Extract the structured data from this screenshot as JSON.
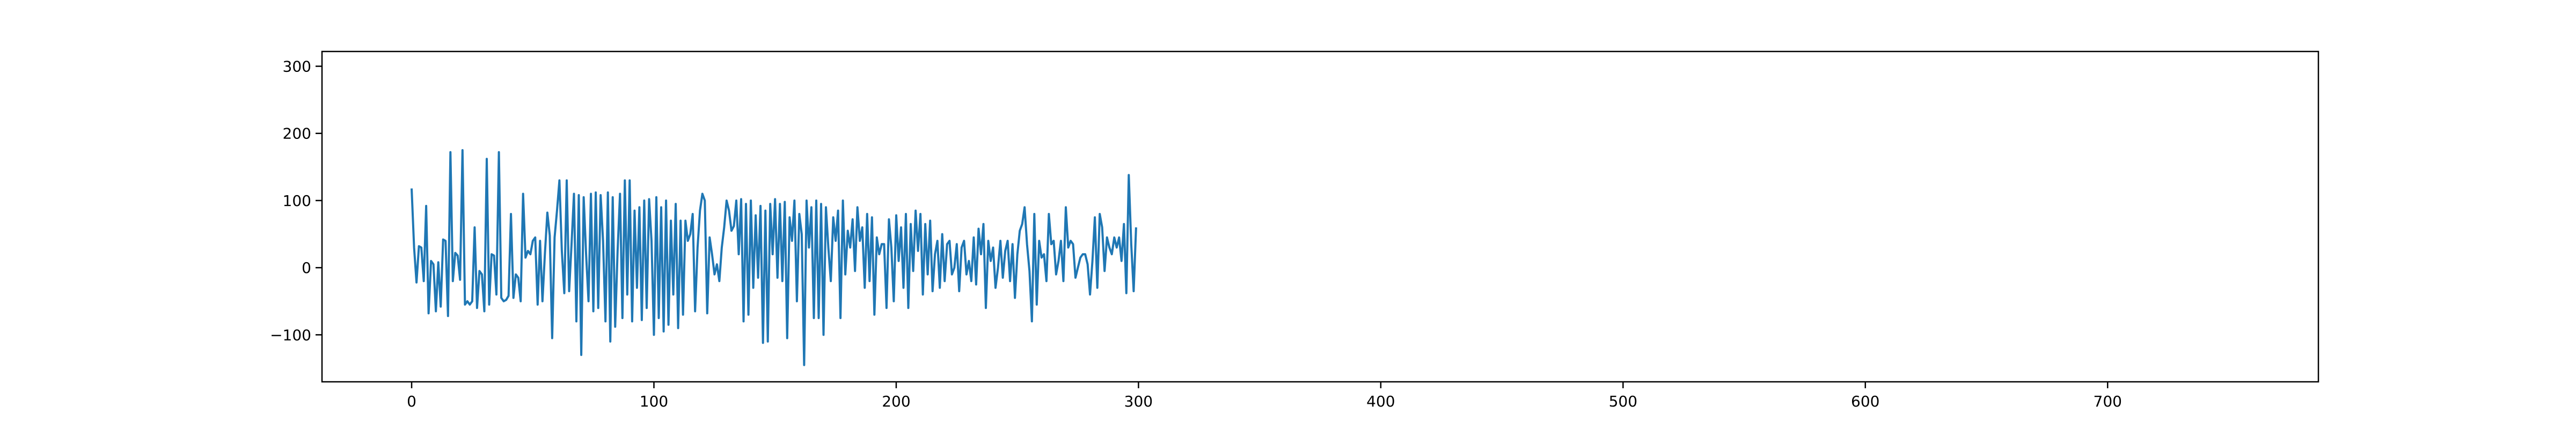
{
  "chart_data": {
    "type": "line",
    "title": "",
    "xlabel": "",
    "ylabel": "",
    "xlim": [
      -37,
      787
    ],
    "ylim": [
      -170,
      322
    ],
    "x_ticks": [
      0,
      100,
      200,
      300,
      400,
      500,
      600,
      700
    ],
    "y_ticks": [
      -100,
      0,
      100,
      200,
      300
    ],
    "x_tick_labels": [
      "0",
      "100",
      "200",
      "300",
      "400",
      "500",
      "600",
      "700"
    ],
    "y_tick_labels": [
      "−100",
      "0",
      "100",
      "200",
      "300"
    ],
    "grid": false,
    "legend": "none",
    "series": [
      {
        "color": "#1f77b4",
        "points": [
          [
            0,
            118
          ],
          [
            1,
            30
          ],
          [
            2,
            -22
          ],
          [
            3,
            32
          ],
          [
            4,
            30
          ],
          [
            5,
            -20
          ],
          [
            6,
            92
          ],
          [
            7,
            -68
          ],
          [
            8,
            10
          ],
          [
            9,
            5
          ],
          [
            10,
            -65
          ],
          [
            11,
            8
          ],
          [
            12,
            -58
          ],
          [
            13,
            42
          ],
          [
            14,
            40
          ],
          [
            15,
            -72
          ],
          [
            16,
            172
          ],
          [
            17,
            -20
          ],
          [
            18,
            22
          ],
          [
            19,
            18
          ],
          [
            20,
            -18
          ],
          [
            21,
            175
          ],
          [
            22,
            -55
          ],
          [
            23,
            -50
          ],
          [
            24,
            -55
          ],
          [
            25,
            -50
          ],
          [
            26,
            60
          ],
          [
            27,
            -60
          ],
          [
            28,
            -5
          ],
          [
            29,
            -10
          ],
          [
            30,
            -65
          ],
          [
            31,
            162
          ],
          [
            32,
            -55
          ],
          [
            33,
            20
          ],
          [
            34,
            18
          ],
          [
            35,
            -40
          ],
          [
            36,
            172
          ],
          [
            37,
            -45
          ],
          [
            38,
            -50
          ],
          [
            39,
            -48
          ],
          [
            40,
            -42
          ],
          [
            41,
            80
          ],
          [
            42,
            -45
          ],
          [
            43,
            -10
          ],
          [
            44,
            -15
          ],
          [
            45,
            -50
          ],
          [
            46,
            110
          ],
          [
            47,
            15
          ],
          [
            48,
            25
          ],
          [
            49,
            20
          ],
          [
            50,
            40
          ],
          [
            51,
            45
          ],
          [
            52,
            -55
          ],
          [
            53,
            40
          ],
          [
            54,
            -50
          ],
          [
            55,
            20
          ],
          [
            56,
            82
          ],
          [
            57,
            48
          ],
          [
            58,
            -105
          ],
          [
            59,
            45
          ],
          [
            60,
            85
          ],
          [
            61,
            130
          ],
          [
            62,
            25
          ],
          [
            63,
            -38
          ],
          [
            64,
            130
          ],
          [
            65,
            -35
          ],
          [
            66,
            35
          ],
          [
            67,
            110
          ],
          [
            68,
            -80
          ],
          [
            69,
            108
          ],
          [
            70,
            -130
          ],
          [
            71,
            105
          ],
          [
            72,
            20
          ],
          [
            73,
            -50
          ],
          [
            74,
            110
          ],
          [
            75,
            -65
          ],
          [
            76,
            112
          ],
          [
            77,
            -60
          ],
          [
            78,
            108
          ],
          [
            79,
            40
          ],
          [
            80,
            -80
          ],
          [
            81,
            112
          ],
          [
            82,
            -110
          ],
          [
            83,
            105
          ],
          [
            84,
            -88
          ],
          [
            85,
            25
          ],
          [
            86,
            110
          ],
          [
            87,
            -75
          ],
          [
            88,
            130
          ],
          [
            89,
            -40
          ],
          [
            90,
            130
          ],
          [
            91,
            -80
          ],
          [
            92,
            85
          ],
          [
            93,
            -30
          ],
          [
            94,
            90
          ],
          [
            95,
            -78
          ],
          [
            96,
            100
          ],
          [
            97,
            -60
          ],
          [
            98,
            102
          ],
          [
            99,
            40
          ],
          [
            100,
            -100
          ],
          [
            101,
            105
          ],
          [
            102,
            -75
          ],
          [
            103,
            90
          ],
          [
            104,
            -95
          ],
          [
            105,
            100
          ],
          [
            106,
            -85
          ],
          [
            107,
            70
          ],
          [
            108,
            -40
          ],
          [
            109,
            95
          ],
          [
            110,
            -90
          ],
          [
            111,
            70
          ],
          [
            112,
            -70
          ],
          [
            113,
            70
          ],
          [
            114,
            40
          ],
          [
            115,
            50
          ],
          [
            116,
            80
          ],
          [
            117,
            -65
          ],
          [
            118,
            30
          ],
          [
            119,
            85
          ],
          [
            120,
            110
          ],
          [
            121,
            100
          ],
          [
            122,
            -68
          ],
          [
            123,
            45
          ],
          [
            124,
            20
          ],
          [
            125,
            -10
          ],
          [
            126,
            5
          ],
          [
            127,
            -20
          ],
          [
            128,
            30
          ],
          [
            129,
            60
          ],
          [
            130,
            100
          ],
          [
            131,
            85
          ],
          [
            132,
            55
          ],
          [
            133,
            62
          ],
          [
            134,
            100
          ],
          [
            135,
            20
          ],
          [
            136,
            102
          ],
          [
            137,
            -80
          ],
          [
            138,
            95
          ],
          [
            139,
            -70
          ],
          [
            140,
            100
          ],
          [
            141,
            -30
          ],
          [
            142,
            78
          ],
          [
            143,
            -15
          ],
          [
            144,
            92
          ],
          [
            145,
            -112
          ],
          [
            146,
            85
          ],
          [
            147,
            -110
          ],
          [
            148,
            95
          ],
          [
            149,
            20
          ],
          [
            150,
            102
          ],
          [
            151,
            -15
          ],
          [
            152,
            95
          ],
          [
            153,
            -20
          ],
          [
            154,
            98
          ],
          [
            155,
            -105
          ],
          [
            156,
            75
          ],
          [
            157,
            40
          ],
          [
            158,
            100
          ],
          [
            159,
            -50
          ],
          [
            160,
            80
          ],
          [
            161,
            50
          ],
          [
            162,
            -145
          ],
          [
            163,
            100
          ],
          [
            164,
            30
          ],
          [
            165,
            90
          ],
          [
            166,
            -75
          ],
          [
            167,
            100
          ],
          [
            168,
            -75
          ],
          [
            169,
            95
          ],
          [
            170,
            -100
          ],
          [
            171,
            90
          ],
          [
            172,
            30
          ],
          [
            173,
            -20
          ],
          [
            174,
            75
          ],
          [
            175,
            40
          ],
          [
            176,
            85
          ],
          [
            177,
            -75
          ],
          [
            178,
            100
          ],
          [
            179,
            -10
          ],
          [
            180,
            55
          ],
          [
            181,
            30
          ],
          [
            182,
            72
          ],
          [
            183,
            -5
          ],
          [
            184,
            90
          ],
          [
            185,
            40
          ],
          [
            186,
            60
          ],
          [
            187,
            -30
          ],
          [
            188,
            80
          ],
          [
            189,
            -20
          ],
          [
            190,
            75
          ],
          [
            191,
            -70
          ],
          [
            192,
            45
          ],
          [
            193,
            20
          ],
          [
            194,
            35
          ],
          [
            195,
            35
          ],
          [
            196,
            -60
          ],
          [
            197,
            72
          ],
          [
            198,
            30
          ],
          [
            199,
            -50
          ],
          [
            200,
            78
          ],
          [
            201,
            10
          ],
          [
            202,
            60
          ],
          [
            203,
            -30
          ],
          [
            204,
            80
          ],
          [
            205,
            -60
          ],
          [
            206,
            65
          ],
          [
            207,
            -5
          ],
          [
            208,
            85
          ],
          [
            209,
            25
          ],
          [
            210,
            80
          ],
          [
            211,
            -40
          ],
          [
            212,
            65
          ],
          [
            213,
            -10
          ],
          [
            214,
            70
          ],
          [
            215,
            -35
          ],
          [
            216,
            20
          ],
          [
            217,
            40
          ],
          [
            218,
            -30
          ],
          [
            219,
            50
          ],
          [
            220,
            -20
          ],
          [
            221,
            35
          ],
          [
            222,
            40
          ],
          [
            223,
            -10
          ],
          [
            224,
            0
          ],
          [
            225,
            35
          ],
          [
            226,
            -35
          ],
          [
            227,
            30
          ],
          [
            228,
            40
          ],
          [
            229,
            -10
          ],
          [
            230,
            10
          ],
          [
            231,
            -20
          ],
          [
            232,
            45
          ],
          [
            233,
            -25
          ],
          [
            234,
            58
          ],
          [
            235,
            20
          ],
          [
            236,
            65
          ],
          [
            237,
            -60
          ],
          [
            238,
            40
          ],
          [
            239,
            10
          ],
          [
            240,
            30
          ],
          [
            241,
            -30
          ],
          [
            242,
            0
          ],
          [
            243,
            40
          ],
          [
            244,
            -15
          ],
          [
            245,
            25
          ],
          [
            246,
            40
          ],
          [
            247,
            -20
          ],
          [
            248,
            35
          ],
          [
            249,
            -45
          ],
          [
            250,
            20
          ],
          [
            251,
            55
          ],
          [
            252,
            65
          ],
          [
            253,
            90
          ],
          [
            254,
            35
          ],
          [
            255,
            -5
          ],
          [
            256,
            -80
          ],
          [
            257,
            80
          ],
          [
            258,
            -55
          ],
          [
            259,
            40
          ],
          [
            260,
            15
          ],
          [
            261,
            20
          ],
          [
            262,
            -20
          ],
          [
            263,
            80
          ],
          [
            264,
            35
          ],
          [
            265,
            40
          ],
          [
            266,
            -10
          ],
          [
            267,
            10
          ],
          [
            268,
            40
          ],
          [
            269,
            -20
          ],
          [
            270,
            90
          ],
          [
            271,
            30
          ],
          [
            272,
            40
          ],
          [
            273,
            35
          ],
          [
            274,
            -15
          ],
          [
            275,
            0
          ],
          [
            276,
            15
          ],
          [
            277,
            20
          ],
          [
            278,
            20
          ],
          [
            279,
            5
          ],
          [
            280,
            -40
          ],
          [
            281,
            10
          ],
          [
            282,
            75
          ],
          [
            283,
            -30
          ],
          [
            284,
            80
          ],
          [
            285,
            60
          ],
          [
            286,
            -5
          ],
          [
            287,
            45
          ],
          [
            288,
            30
          ],
          [
            289,
            20
          ],
          [
            290,
            45
          ],
          [
            291,
            30
          ],
          [
            292,
            45
          ],
          [
            293,
            10
          ],
          [
            294,
            65
          ],
          [
            295,
            -38
          ],
          [
            296,
            138
          ],
          [
            297,
            35
          ],
          [
            298,
            -35
          ],
          [
            299,
            60
          ]
        ]
      }
    ]
  }
}
